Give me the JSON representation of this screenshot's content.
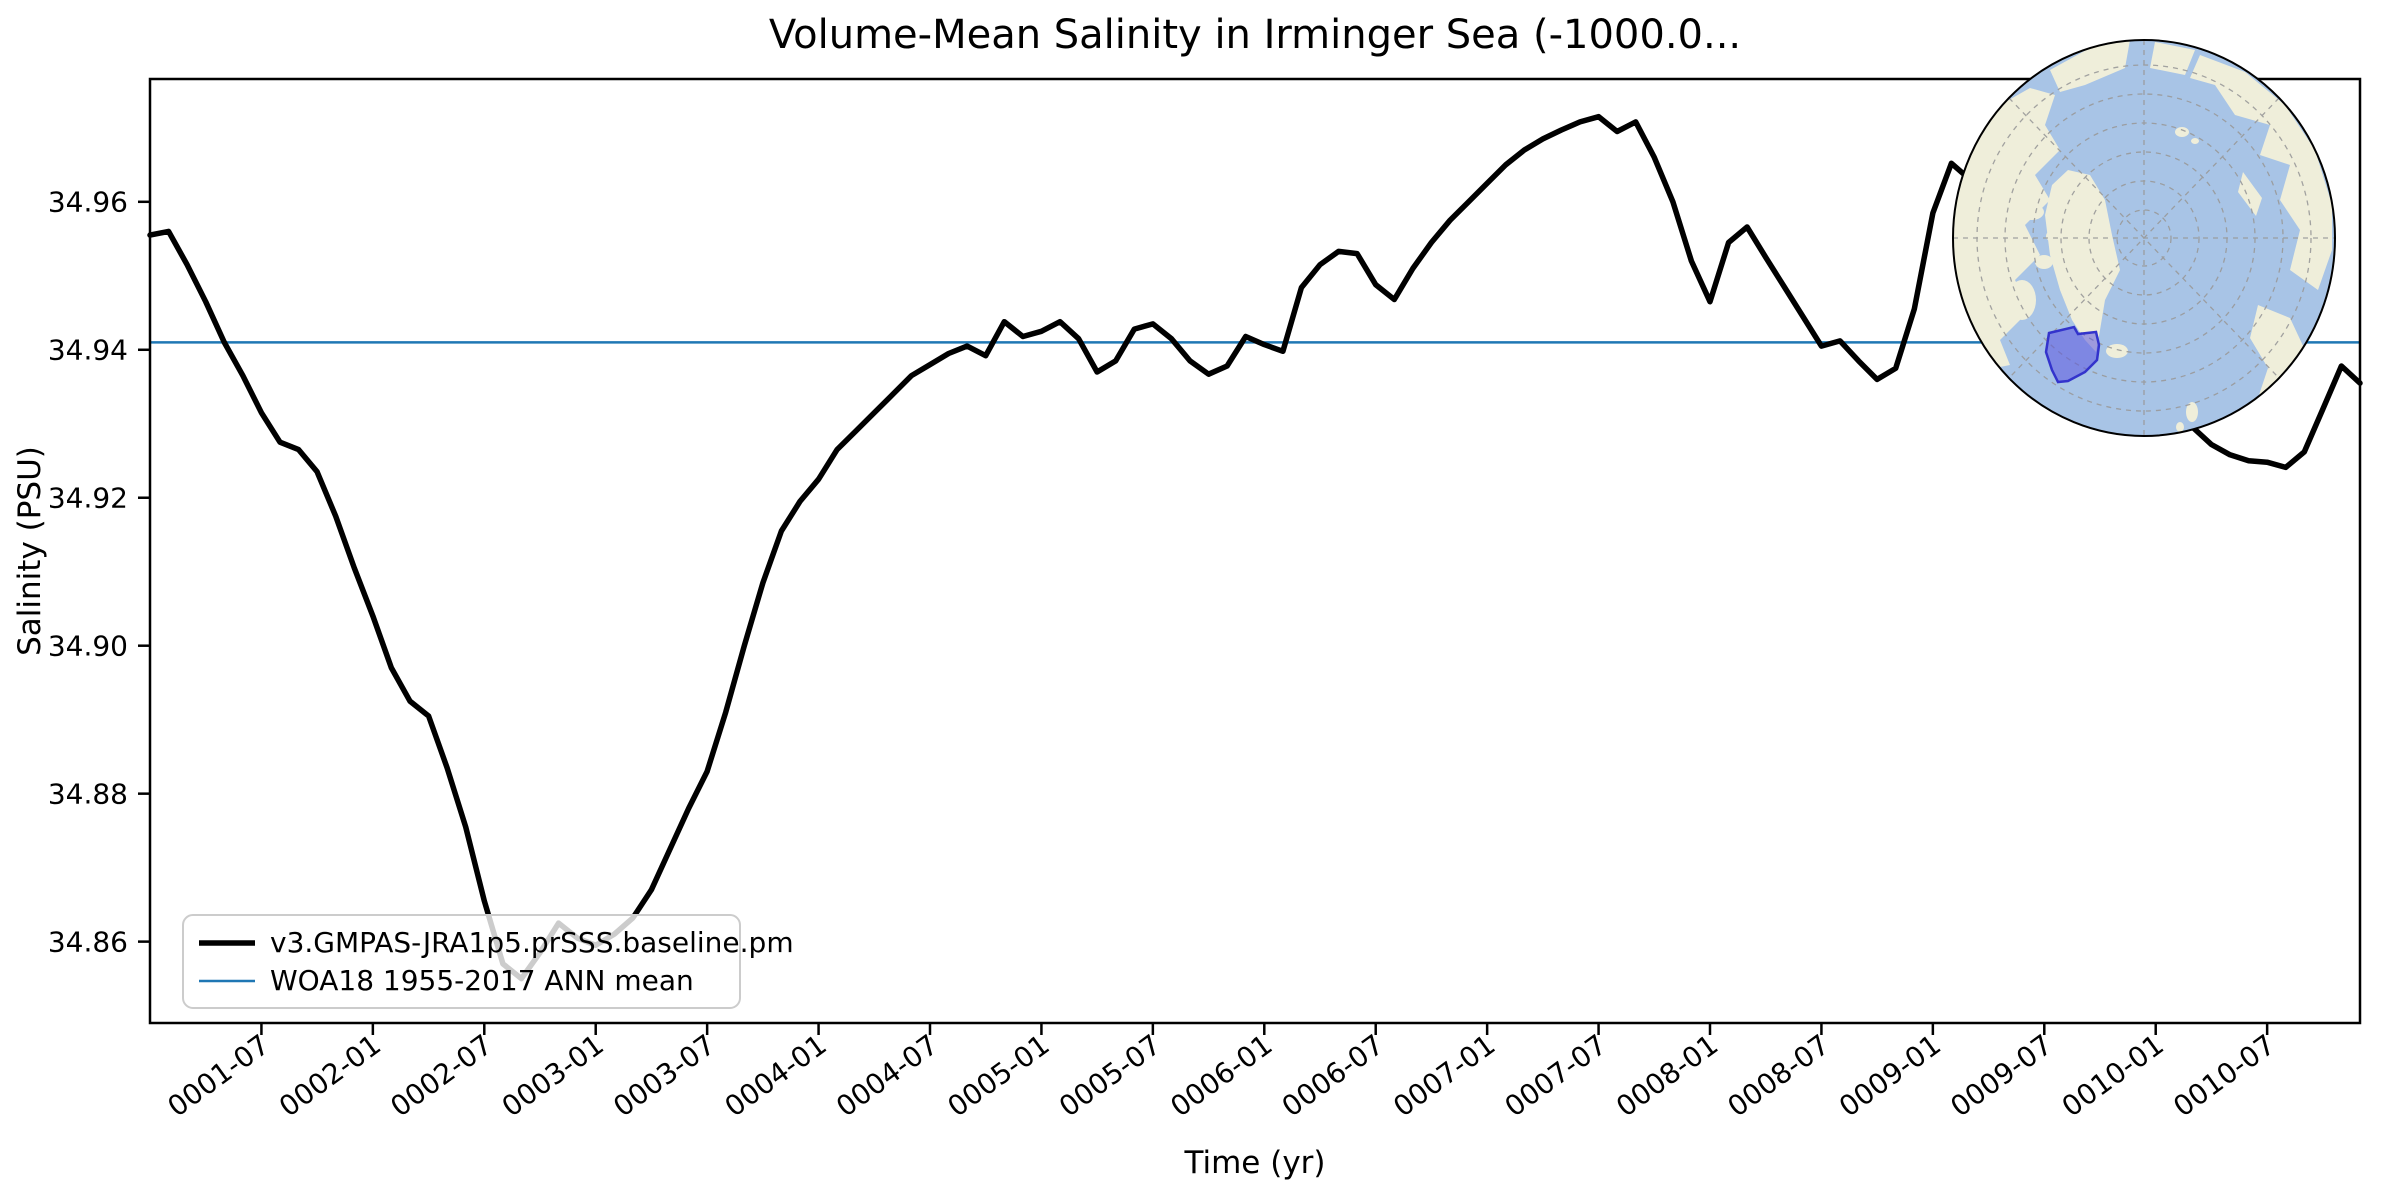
{
  "title": "Volume-Mean Salinity in Irminger Sea (-1000.0...",
  "axes": {
    "xlabel": "Time (yr)",
    "ylabel": "Salinity (PSU)"
  },
  "legend": {
    "entries": [
      {
        "label": "v3.GMPAS-JRA1p5.prSSS.baseline.pm",
        "color": "#000000",
        "linewidth": 5.5
      },
      {
        "label": "WOA18 1955-2017 ANN mean",
        "color": "#1f77b4",
        "linewidth": 2.5
      }
    ]
  },
  "colors": {
    "series": "#000000",
    "reference_line": "#1f77b4",
    "legend_border": "#cccccc",
    "map_ocean": "#a8c4e6",
    "map_land": "#efeeda",
    "map_region_fill": "#5b55e0",
    "map_region_stroke": "#3333cc",
    "map_graticule": "#999999",
    "map_outline": "#000000"
  },
  "chart_data": {
    "type": "line",
    "title": "Volume-Mean Salinity in Irminger Sea (-1000.0...",
    "xlabel": "Time (yr)",
    "ylabel": "Salinity (PSU)",
    "x_start": "0001-01",
    "x_end": "0010-12",
    "frequency": "monthly",
    "ylim": [
      34.849,
      34.9766
    ],
    "yticks": [
      34.86,
      34.88,
      34.9,
      34.92,
      34.94,
      34.96
    ],
    "ytick_labels": [
      "34.86",
      "34.88",
      "34.90",
      "34.92",
      "34.94",
      "34.96"
    ],
    "xticks": [
      {
        "label": "0001-07",
        "month_index": 6
      },
      {
        "label": "0002-01",
        "month_index": 12
      },
      {
        "label": "0002-07",
        "month_index": 18
      },
      {
        "label": "0003-01",
        "month_index": 24
      },
      {
        "label": "0003-07",
        "month_index": 30
      },
      {
        "label": "0004-01",
        "month_index": 36
      },
      {
        "label": "0004-07",
        "month_index": 42
      },
      {
        "label": "0005-01",
        "month_index": 48
      },
      {
        "label": "0005-07",
        "month_index": 54
      },
      {
        "label": "0006-01",
        "month_index": 60
      },
      {
        "label": "0006-07",
        "month_index": 66
      },
      {
        "label": "0007-01",
        "month_index": 72
      },
      {
        "label": "0007-07",
        "month_index": 78
      },
      {
        "label": "0008-01",
        "month_index": 84
      },
      {
        "label": "0008-07",
        "month_index": 90
      },
      {
        "label": "0009-01",
        "month_index": 96
      },
      {
        "label": "0009-07",
        "month_index": 102
      },
      {
        "label": "0010-01",
        "month_index": 108
      },
      {
        "label": "0010-07",
        "month_index": 114
      }
    ],
    "series": [
      {
        "name": "v3.GMPAS-JRA1p5.prSSS.baseline.pm",
        "values": [
          34.9555,
          34.956,
          34.9515,
          34.9465,
          34.941,
          34.9365,
          34.9315,
          34.9275,
          34.9265,
          34.9235,
          34.9175,
          34.9105,
          34.904,
          34.897,
          34.8925,
          34.8905,
          34.8835,
          34.8755,
          34.8655,
          34.857,
          34.855,
          34.8585,
          34.8625,
          34.8605,
          34.8595,
          34.861,
          34.8632,
          34.867,
          34.8725,
          34.878,
          34.883,
          34.891,
          34.9,
          34.9085,
          34.9155,
          34.9195,
          34.9225,
          34.9265,
          34.929,
          34.9315,
          34.934,
          34.9365,
          34.938,
          34.9395,
          34.9405,
          34.9392,
          34.9438,
          34.9418,
          34.9425,
          34.9438,
          34.9415,
          34.937,
          34.9385,
          34.9428,
          34.9435,
          34.9415,
          34.9385,
          34.9367,
          34.9378,
          34.9418,
          34.9407,
          34.9398,
          34.9484,
          34.9515,
          34.9533,
          34.953,
          34.9488,
          34.9468,
          34.951,
          34.9545,
          34.9575,
          34.96,
          34.9625,
          34.965,
          34.967,
          34.9685,
          34.9697,
          34.9708,
          34.9715,
          34.9695,
          34.9708,
          34.966,
          34.96,
          34.952,
          34.9465,
          34.9545,
          34.9566,
          34.9525,
          34.9485,
          34.9445,
          34.9405,
          34.9412,
          34.9385,
          34.936,
          34.9375,
          34.9455,
          34.9585,
          34.9652,
          34.963,
          34.959,
          34.9555,
          34.9525,
          34.951,
          34.9495,
          34.947,
          34.9435,
          34.94,
          34.9365,
          34.934,
          34.9315,
          34.9295,
          34.9272,
          34.9258,
          34.925,
          34.9248,
          34.9241,
          34.9262,
          34.932,
          34.9378,
          34.9355
        ]
      }
    ],
    "reference_line": {
      "name": "WOA18 1955-2017 ANN mean",
      "value": 34.941
    },
    "legend_position": "lower left",
    "grid": false
  },
  "inset_map": {
    "kind": "north-polar-stereographic-globe",
    "highlighted_region": "Irminger Sea",
    "graticule": "dashed circles and 8 radial meridians"
  }
}
